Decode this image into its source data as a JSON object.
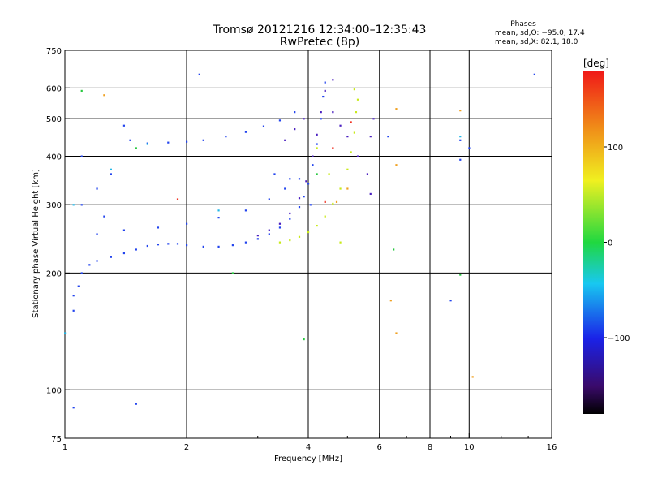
{
  "header": {
    "title_line1": "Tromsø 20121216 12:34:00–12:35:43",
    "title_line2": "RwPretec (8p)",
    "stats_title": "Phases",
    "stats_o": "mean, sd,O: −95.0, 17.4",
    "stats_x": "mean, sd,X:  82.1, 18.0"
  },
  "colorbar": {
    "unit_label": "[deg]",
    "ticks": [
      {
        "value": 100,
        "label": "100"
      },
      {
        "value": 0,
        "label": "0"
      },
      {
        "value": -100,
        "label": "−100"
      }
    ],
    "range": [
      -180,
      180
    ]
  },
  "chart_data": {
    "type": "scatter",
    "xlabel": "Frequency [MHz]",
    "ylabel": "Stationary phase Virtual Height [km]",
    "x_scale": "log",
    "y_scale": "log",
    "xlim": [
      1,
      16
    ],
    "ylim": [
      75,
      750
    ],
    "x_ticks": [
      {
        "v": 1,
        "l": "1"
      },
      {
        "v": 2,
        "l": "2"
      },
      {
        "v": 4,
        "l": "4"
      },
      {
        "v": 6,
        "l": "6"
      },
      {
        "v": 8,
        "l": "8"
      },
      {
        "v": 10,
        "l": "10"
      },
      {
        "v": 16,
        "l": "16"
      }
    ],
    "x_grid": [
      2,
      4,
      6,
      8,
      10
    ],
    "y_ticks": [
      {
        "v": 75,
        "l": "75"
      },
      {
        "v": 100,
        "l": "100"
      },
      {
        "v": 200,
        "l": "200"
      },
      {
        "v": 300,
        "l": "300"
      },
      {
        "v": 400,
        "l": "400"
      },
      {
        "v": 500,
        "l": "500"
      },
      {
        "v": 600,
        "l": "600"
      },
      {
        "v": 750,
        "l": "750"
      }
    ],
    "y_grid": [
      100,
      200,
      300,
      400,
      500,
      600
    ],
    "grid": true,
    "series": [
      {
        "mode": "O",
        "phase_deg": -115,
        "color": "#2244ee",
        "points": [
          [
            1.05,
            160
          ],
          [
            1.05,
            175
          ],
          [
            1.08,
            185
          ],
          [
            1.1,
            200
          ],
          [
            1.15,
            210
          ],
          [
            1.2,
            215
          ],
          [
            1.3,
            220
          ],
          [
            1.4,
            225
          ],
          [
            1.5,
            230
          ],
          [
            1.6,
            235
          ],
          [
            1.7,
            237
          ],
          [
            1.8,
            238
          ],
          [
            1.9,
            238
          ],
          [
            2.0,
            236
          ],
          [
            2.2,
            234
          ],
          [
            2.4,
            234
          ],
          [
            2.6,
            236
          ],
          [
            2.8,
            240
          ],
          [
            3.0,
            245
          ],
          [
            3.2,
            252
          ],
          [
            3.4,
            262
          ],
          [
            3.6,
            276
          ],
          [
            3.8,
            296
          ],
          [
            3.9,
            315
          ],
          [
            4.0,
            340
          ],
          [
            4.1,
            380
          ],
          [
            4.2,
            430
          ],
          [
            4.3,
            500
          ],
          [
            4.35,
            570
          ],
          [
            4.4,
            620
          ],
          [
            1.6,
            432
          ],
          [
            1.8,
            434
          ],
          [
            2.0,
            436
          ],
          [
            2.2,
            440
          ],
          [
            2.5,
            450
          ],
          [
            2.8,
            462
          ],
          [
            3.1,
            478
          ],
          [
            3.4,
            495
          ],
          [
            3.7,
            520
          ],
          [
            1.2,
            252
          ],
          [
            1.4,
            258
          ],
          [
            1.7,
            262
          ],
          [
            2.0,
            268
          ],
          [
            2.4,
            278
          ],
          [
            2.8,
            290
          ],
          [
            3.2,
            310
          ],
          [
            3.5,
            330
          ],
          [
            3.8,
            350
          ],
          [
            1.4,
            480
          ],
          [
            1.45,
            440
          ],
          [
            1.3,
            360
          ],
          [
            1.1,
            400
          ],
          [
            2.15,
            650
          ],
          [
            1.1,
            300
          ],
          [
            1.2,
            330
          ],
          [
            1.25,
            280
          ],
          [
            1.05,
            90
          ],
          [
            1.5,
            92
          ],
          [
            3.6,
            350
          ],
          [
            3.3,
            360
          ],
          [
            4.05,
            300
          ],
          [
            6.3,
            450
          ],
          [
            9.5,
            440
          ],
          [
            9.5,
            392
          ],
          [
            9.0,
            170
          ],
          [
            10.0,
            420
          ],
          [
            14.5,
            650
          ]
        ]
      },
      {
        "mode": "O",
        "phase_deg": -145,
        "color": "#4a1fc0",
        "points": [
          [
            3.0,
            250
          ],
          [
            3.2,
            258
          ],
          [
            3.4,
            268
          ],
          [
            3.6,
            285
          ],
          [
            3.8,
            312
          ],
          [
            3.95,
            345
          ],
          [
            4.1,
            400
          ],
          [
            4.2,
            455
          ],
          [
            4.3,
            520
          ],
          [
            4.4,
            590
          ],
          [
            3.5,
            440
          ],
          [
            3.7,
            470
          ],
          [
            3.9,
            500
          ],
          [
            4.6,
            520
          ],
          [
            4.8,
            480
          ],
          [
            4.6,
            630
          ],
          [
            5.0,
            450
          ],
          [
            5.3,
            400
          ],
          [
            5.6,
            360
          ],
          [
            5.7,
            320
          ],
          [
            5.7,
            450
          ],
          [
            5.8,
            500
          ]
        ]
      },
      {
        "mode": "X",
        "phase_deg": 90,
        "color": "#c8ea18",
        "points": [
          [
            3.4,
            240
          ],
          [
            3.6,
            243
          ],
          [
            3.8,
            248
          ],
          [
            4.0,
            255
          ],
          [
            4.2,
            265
          ],
          [
            4.4,
            280
          ],
          [
            4.6,
            302
          ],
          [
            4.8,
            330
          ],
          [
            5.0,
            370
          ],
          [
            5.1,
            410
          ],
          [
            5.2,
            460
          ],
          [
            5.25,
            520
          ],
          [
            5.3,
            560
          ],
          [
            5.2,
            595
          ],
          [
            4.8,
            240
          ],
          [
            4.5,
            360
          ],
          [
            4.2,
            420
          ]
        ]
      },
      {
        "mode": "other",
        "phase_deg": 140,
        "color": "#f0a020",
        "points": [
          [
            1.25,
            575
          ],
          [
            6.6,
            530
          ],
          [
            9.5,
            525
          ],
          [
            6.4,
            170
          ],
          [
            6.6,
            140
          ],
          [
            10.2,
            108
          ],
          [
            6.6,
            380
          ],
          [
            5.0,
            330
          ],
          [
            4.7,
            305
          ]
        ]
      },
      {
        "mode": "other",
        "phase_deg": 45,
        "color": "#28c840",
        "points": [
          [
            1.1,
            590
          ],
          [
            3.9,
            135
          ],
          [
            6.5,
            230
          ],
          [
            9.5,
            198
          ],
          [
            1.5,
            420
          ],
          [
            2.6,
            200
          ],
          [
            4.2,
            360
          ]
        ]
      },
      {
        "mode": "other",
        "phase_deg": -45,
        "color": "#20b8e8",
        "points": [
          [
            1.0,
            140
          ],
          [
            1.05,
            300
          ],
          [
            1.3,
            370
          ],
          [
            2.4,
            290
          ],
          [
            1.6,
            430
          ],
          [
            9.5,
            450
          ]
        ]
      },
      {
        "mode": "other",
        "phase_deg": 170,
        "color": "#f03020",
        "points": [
          [
            4.4,
            305
          ],
          [
            5.1,
            490
          ],
          [
            1.9,
            310
          ],
          [
            4.6,
            420
          ]
        ]
      }
    ]
  }
}
